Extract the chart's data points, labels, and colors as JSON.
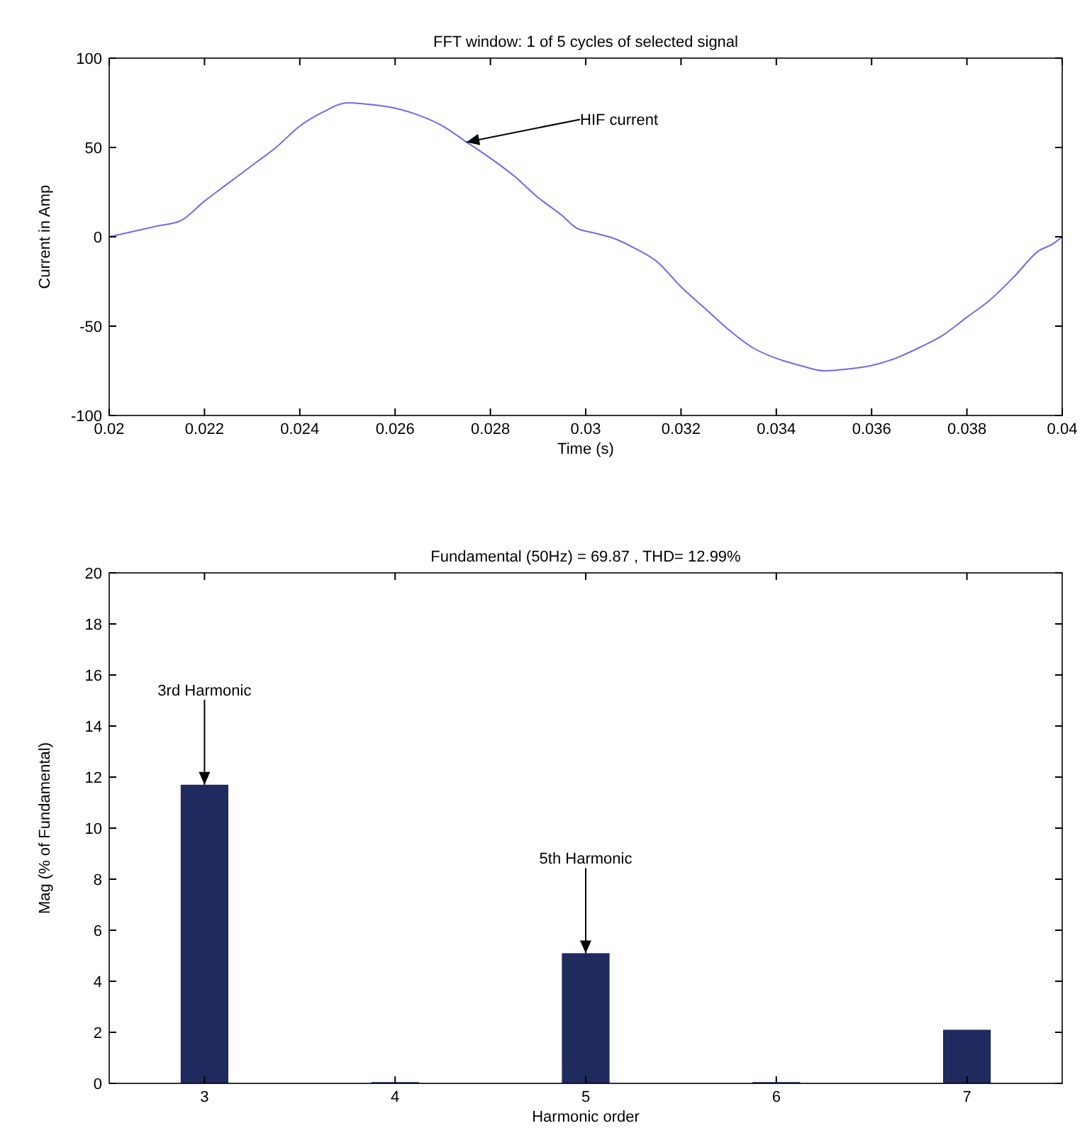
{
  "chart_data": [
    {
      "type": "line",
      "title": "FFT window: 1 of 5 cycles of selected signal",
      "xlabel": "Time (s)",
      "ylabel": "Current in Amp",
      "xlim": [
        0.02,
        0.04
      ],
      "xticks": [
        0.02,
        0.022,
        0.024,
        0.026,
        0.028,
        0.03,
        0.032,
        0.034,
        0.036,
        0.038,
        0.04
      ],
      "ylim": [
        -100,
        100
      ],
      "yticks": [
        -100,
        -50,
        0,
        50,
        100
      ],
      "grid": false,
      "series": [
        {
          "color": "#6b6bf0",
          "x": [
            0.02,
            0.0205,
            0.021,
            0.0215,
            0.022,
            0.0225,
            0.023,
            0.0235,
            0.024,
            0.0245,
            0.025,
            0.0255,
            0.026,
            0.0265,
            0.027,
            0.0275,
            0.028,
            0.0285,
            0.029,
            0.0295,
            0.0298,
            0.0302,
            0.0306,
            0.031,
            0.0315,
            0.032,
            0.0325,
            0.033,
            0.0335,
            0.034,
            0.0345,
            0.035,
            0.0355,
            0.036,
            0.0365,
            0.037,
            0.0375,
            0.038,
            0.0385,
            0.039,
            0.0395,
            0.0398,
            0.04
          ],
          "values": [
            0,
            3,
            6,
            9,
            20,
            30,
            40,
            50,
            62,
            70,
            75,
            74,
            72,
            68,
            62,
            53,
            44,
            34,
            22,
            12,
            5,
            2,
            -1,
            -6,
            -14,
            -28,
            -40,
            -52,
            -62,
            -68,
            -72,
            -75,
            -74,
            -72,
            -68,
            -62,
            -55,
            -45,
            -35,
            -22,
            -8,
            -4,
            0
          ]
        }
      ],
      "annotations": [
        {
          "text": "HIF current",
          "x": 0.0275,
          "y": 53
        }
      ]
    },
    {
      "type": "bar",
      "title": "Fundamental (50Hz) = 69.87 , THD= 12.99%",
      "xlabel": "Harmonic order",
      "ylabel": "Mag (% of Fundamental)",
      "categories": [
        "3",
        "4",
        "5",
        "6",
        "7"
      ],
      "values": [
        11.7,
        0.05,
        5.1,
        0.05,
        2.1
      ],
      "color": "#1f2a5e",
      "ylim": [
        0,
        20
      ],
      "yticks": [
        0,
        2,
        4,
        6,
        8,
        10,
        12,
        14,
        16,
        18,
        20
      ],
      "grid": false,
      "annotations": [
        {
          "text": "3rd Harmonic",
          "x": "3",
          "y": 11.7
        },
        {
          "text": "5th Harmonic",
          "x": "5",
          "y": 5.1
        }
      ]
    }
  ]
}
